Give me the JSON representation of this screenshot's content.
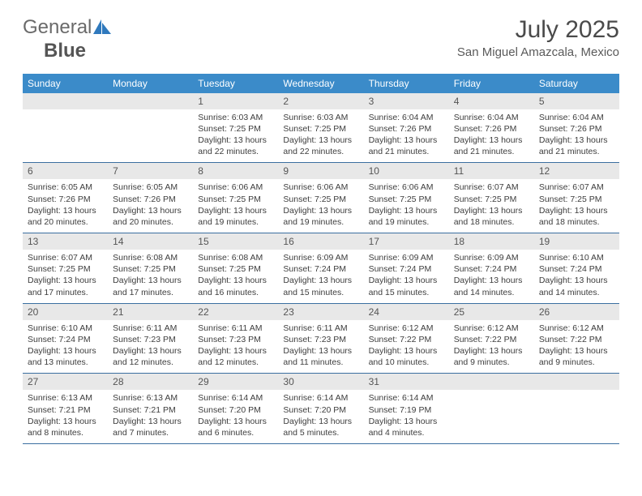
{
  "logo": {
    "part1": "General",
    "part2": "Blue"
  },
  "title": "July 2025",
  "location": "San Miguel Amazcala, Mexico",
  "colors": {
    "header_bg": "#3b8bc9",
    "header_fg": "#ffffff",
    "daynum_bg": "#e8e8e8",
    "row_border": "#3b6fa0",
    "text": "#3d3d3d",
    "logo_blue": "#2f79bd"
  },
  "weekdays": [
    "Sunday",
    "Monday",
    "Tuesday",
    "Wednesday",
    "Thursday",
    "Friday",
    "Saturday"
  ],
  "weeks": [
    [
      null,
      null,
      {
        "n": "1",
        "sunrise": "6:03 AM",
        "sunset": "7:25 PM",
        "daylight": "13 hours and 22 minutes."
      },
      {
        "n": "2",
        "sunrise": "6:03 AM",
        "sunset": "7:25 PM",
        "daylight": "13 hours and 22 minutes."
      },
      {
        "n": "3",
        "sunrise": "6:04 AM",
        "sunset": "7:26 PM",
        "daylight": "13 hours and 21 minutes."
      },
      {
        "n": "4",
        "sunrise": "6:04 AM",
        "sunset": "7:26 PM",
        "daylight": "13 hours and 21 minutes."
      },
      {
        "n": "5",
        "sunrise": "6:04 AM",
        "sunset": "7:26 PM",
        "daylight": "13 hours and 21 minutes."
      }
    ],
    [
      {
        "n": "6",
        "sunrise": "6:05 AM",
        "sunset": "7:26 PM",
        "daylight": "13 hours and 20 minutes."
      },
      {
        "n": "7",
        "sunrise": "6:05 AM",
        "sunset": "7:26 PM",
        "daylight": "13 hours and 20 minutes."
      },
      {
        "n": "8",
        "sunrise": "6:06 AM",
        "sunset": "7:25 PM",
        "daylight": "13 hours and 19 minutes."
      },
      {
        "n": "9",
        "sunrise": "6:06 AM",
        "sunset": "7:25 PM",
        "daylight": "13 hours and 19 minutes."
      },
      {
        "n": "10",
        "sunrise": "6:06 AM",
        "sunset": "7:25 PM",
        "daylight": "13 hours and 19 minutes."
      },
      {
        "n": "11",
        "sunrise": "6:07 AM",
        "sunset": "7:25 PM",
        "daylight": "13 hours and 18 minutes."
      },
      {
        "n": "12",
        "sunrise": "6:07 AM",
        "sunset": "7:25 PM",
        "daylight": "13 hours and 18 minutes."
      }
    ],
    [
      {
        "n": "13",
        "sunrise": "6:07 AM",
        "sunset": "7:25 PM",
        "daylight": "13 hours and 17 minutes."
      },
      {
        "n": "14",
        "sunrise": "6:08 AM",
        "sunset": "7:25 PM",
        "daylight": "13 hours and 17 minutes."
      },
      {
        "n": "15",
        "sunrise": "6:08 AM",
        "sunset": "7:25 PM",
        "daylight": "13 hours and 16 minutes."
      },
      {
        "n": "16",
        "sunrise": "6:09 AM",
        "sunset": "7:24 PM",
        "daylight": "13 hours and 15 minutes."
      },
      {
        "n": "17",
        "sunrise": "6:09 AM",
        "sunset": "7:24 PM",
        "daylight": "13 hours and 15 minutes."
      },
      {
        "n": "18",
        "sunrise": "6:09 AM",
        "sunset": "7:24 PM",
        "daylight": "13 hours and 14 minutes."
      },
      {
        "n": "19",
        "sunrise": "6:10 AM",
        "sunset": "7:24 PM",
        "daylight": "13 hours and 14 minutes."
      }
    ],
    [
      {
        "n": "20",
        "sunrise": "6:10 AM",
        "sunset": "7:24 PM",
        "daylight": "13 hours and 13 minutes."
      },
      {
        "n": "21",
        "sunrise": "6:11 AM",
        "sunset": "7:23 PM",
        "daylight": "13 hours and 12 minutes."
      },
      {
        "n": "22",
        "sunrise": "6:11 AM",
        "sunset": "7:23 PM",
        "daylight": "13 hours and 12 minutes."
      },
      {
        "n": "23",
        "sunrise": "6:11 AM",
        "sunset": "7:23 PM",
        "daylight": "13 hours and 11 minutes."
      },
      {
        "n": "24",
        "sunrise": "6:12 AM",
        "sunset": "7:22 PM",
        "daylight": "13 hours and 10 minutes."
      },
      {
        "n": "25",
        "sunrise": "6:12 AM",
        "sunset": "7:22 PM",
        "daylight": "13 hours and 9 minutes."
      },
      {
        "n": "26",
        "sunrise": "6:12 AM",
        "sunset": "7:22 PM",
        "daylight": "13 hours and 9 minutes."
      }
    ],
    [
      {
        "n": "27",
        "sunrise": "6:13 AM",
        "sunset": "7:21 PM",
        "daylight": "13 hours and 8 minutes."
      },
      {
        "n": "28",
        "sunrise": "6:13 AM",
        "sunset": "7:21 PM",
        "daylight": "13 hours and 7 minutes."
      },
      {
        "n": "29",
        "sunrise": "6:14 AM",
        "sunset": "7:20 PM",
        "daylight": "13 hours and 6 minutes."
      },
      {
        "n": "30",
        "sunrise": "6:14 AM",
        "sunset": "7:20 PM",
        "daylight": "13 hours and 5 minutes."
      },
      {
        "n": "31",
        "sunrise": "6:14 AM",
        "sunset": "7:19 PM",
        "daylight": "13 hours and 4 minutes."
      },
      null,
      null
    ]
  ],
  "labels": {
    "sunrise": "Sunrise:",
    "sunset": "Sunset:",
    "daylight": "Daylight:"
  }
}
